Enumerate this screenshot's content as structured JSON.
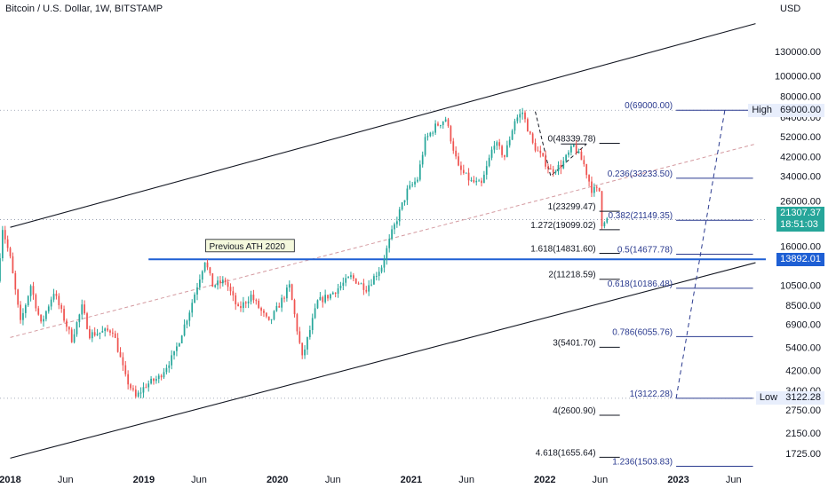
{
  "header": {
    "title": "Bitcoin / U.S. Dollar, 1W, BITSTAMP",
    "currency": "USD"
  },
  "colors": {
    "up": "#26a69a",
    "down": "#ef5350",
    "blue_fib": "#2a3a8f",
    "accent_blue": "#2962ff",
    "support": "#1e5fd4"
  },
  "chart_data": {
    "type": "candlestick",
    "y_scale": "log",
    "ylim": [
      1440,
      190000
    ],
    "xlim": [
      "2017-12-04",
      "2023-08-28"
    ],
    "y_ticks": [
      130000,
      100000,
      80000,
      64000,
      52000,
      42000,
      34000,
      26000,
      16000,
      10500,
      8500,
      6900,
      5400,
      4200,
      3400,
      2750,
      2150,
      1725
    ],
    "x_ticks": [
      {
        "label": "2018",
        "date": "2018-01-01"
      },
      {
        "label": "Jun",
        "date": "2018-06-01"
      },
      {
        "label": "2019",
        "date": "2019-01-01"
      },
      {
        "label": "Jun",
        "date": "2019-06-01"
      },
      {
        "label": "2020",
        "date": "2020-01-01"
      },
      {
        "label": "Jun",
        "date": "2020-06-01"
      },
      {
        "label": "2021",
        "date": "2021-01-01"
      },
      {
        "label": "Jun",
        "date": "2021-06-01"
      },
      {
        "label": "2022",
        "date": "2022-01-01"
      },
      {
        "label": "Jun",
        "date": "2022-06-01"
      },
      {
        "label": "2023",
        "date": "2023-01-01"
      },
      {
        "label": "Jun",
        "date": "2023-06-01"
      }
    ],
    "price_path": [
      [
        "2017-12-04",
        11000
      ],
      [
        "2017-12-18",
        19500
      ],
      [
        "2018-01-08",
        14000
      ],
      [
        "2018-02-05",
        7000
      ],
      [
        "2018-03-05",
        10500
      ],
      [
        "2018-04-02",
        6900
      ],
      [
        "2018-05-07",
        9800
      ],
      [
        "2018-06-25",
        5900
      ],
      [
        "2018-07-23",
        8300
      ],
      [
        "2018-08-13",
        6200
      ],
      [
        "2018-10-15",
        6500
      ],
      [
        "2018-11-19",
        3900
      ],
      [
        "2018-12-17",
        3150
      ],
      [
        "2019-01-14",
        3600
      ],
      [
        "2019-02-18",
        3900
      ],
      [
        "2019-04-01",
        5000
      ],
      [
        "2019-05-13",
        8000
      ],
      [
        "2019-06-24",
        13800
      ],
      [
        "2019-07-15",
        10500
      ],
      [
        "2019-08-19",
        11000
      ],
      [
        "2019-09-23",
        8100
      ],
      [
        "2019-10-28",
        9400
      ],
      [
        "2019-12-16",
        7000
      ],
      [
        "2020-02-10",
        10400
      ],
      [
        "2020-03-16",
        4800
      ],
      [
        "2020-04-27",
        8800
      ],
      [
        "2020-06-01",
        9500
      ],
      [
        "2020-07-27",
        11500
      ],
      [
        "2020-09-07",
        10200
      ],
      [
        "2020-10-19",
        12900
      ],
      [
        "2020-11-16",
        18500
      ],
      [
        "2020-12-28",
        29000
      ],
      [
        "2021-01-25",
        33000
      ],
      [
        "2021-02-15",
        50000
      ],
      [
        "2021-03-15",
        58000
      ],
      [
        "2021-04-12",
        63000
      ],
      [
        "2021-05-17",
        37000
      ],
      [
        "2021-06-21",
        32000
      ],
      [
        "2021-07-19",
        31000
      ],
      [
        "2021-08-23",
        49000
      ],
      [
        "2021-09-20",
        42000
      ],
      [
        "2021-10-18",
        62000
      ],
      [
        "2021-11-08",
        67500
      ],
      [
        "2021-12-06",
        48000
      ],
      [
        "2022-01-24",
        36000
      ],
      [
        "2022-02-21",
        38000
      ],
      [
        "2022-03-28",
        47000
      ],
      [
        "2022-04-25",
        38500
      ],
      [
        "2022-05-16",
        29500
      ],
      [
        "2022-06-06",
        29000
      ],
      [
        "2022-06-13",
        20500
      ],
      [
        "2022-06-20",
        21300
      ]
    ],
    "annotations": [
      {
        "text": "Previous ATH 2020",
        "date": "2019-06-24",
        "price": 14500
      }
    ],
    "fib_extension_black": [
      {
        "label": "0(48339.78)",
        "value": 48339.78
      },
      {
        "label": "1(23299.47)",
        "value": 23299.47
      },
      {
        "label": "1.272(19099.02)",
        "value": 19099.02
      },
      {
        "label": "1.618(14831.60)",
        "value": 14831.6
      },
      {
        "label": "2(11218.59)",
        "value": 11218.59
      },
      {
        "label": "3(5401.70)",
        "value": 5401.7
      },
      {
        "label": "4(2600.90)",
        "value": 2600.9
      },
      {
        "label": "4.618(1655.64)",
        "value": 1655.64
      }
    ],
    "fib_retracement_blue": [
      {
        "label": "0(69000.00)",
        "value": 69000.0
      },
      {
        "label": "0.236(33233.50)",
        "value": 33233.5
      },
      {
        "label": "0.382(21149.35)",
        "value": 21149.35
      },
      {
        "label": "0.5(14677.78)",
        "value": 14677.78
      },
      {
        "label": "0.618(10186.48)",
        "value": 10186.48
      },
      {
        "label": "0.786(6055.76)",
        "value": 6055.76
      },
      {
        "label": "1(3122.28)",
        "value": 3122.28
      },
      {
        "label": "1.236(1503.83)",
        "value": 1503.83
      }
    ],
    "channel": {
      "upper": [
        [
          "2018-01-01",
          19600
        ],
        [
          "2023-07-31",
          175000
        ]
      ],
      "lower": [
        [
          "2018-01-01",
          1640
        ],
        [
          "2023-07-31",
          13400
        ]
      ],
      "mid_dashed": [
        [
          "2018-01-01",
          6000
        ],
        [
          "2023-07-31",
          48000
        ]
      ]
    },
    "horizontal_support": {
      "value": 13892.01,
      "start": "2019-01-14"
    },
    "projection_dashed": [
      [
        "2022-12-26",
        3122.28
      ],
      [
        "2023-05-08",
        69000
      ]
    ],
    "price_labels": {
      "high": {
        "tag": "High",
        "value": "69000.00",
        "y": 69000
      },
      "low": {
        "tag": "Low",
        "value": "3122.28",
        "y": 3122.28
      },
      "current": {
        "value": "21307.37",
        "countdown": "18:51:03",
        "y": 21307.37
      },
      "support": {
        "value": "13892.01",
        "y": 13892.01
      }
    }
  }
}
